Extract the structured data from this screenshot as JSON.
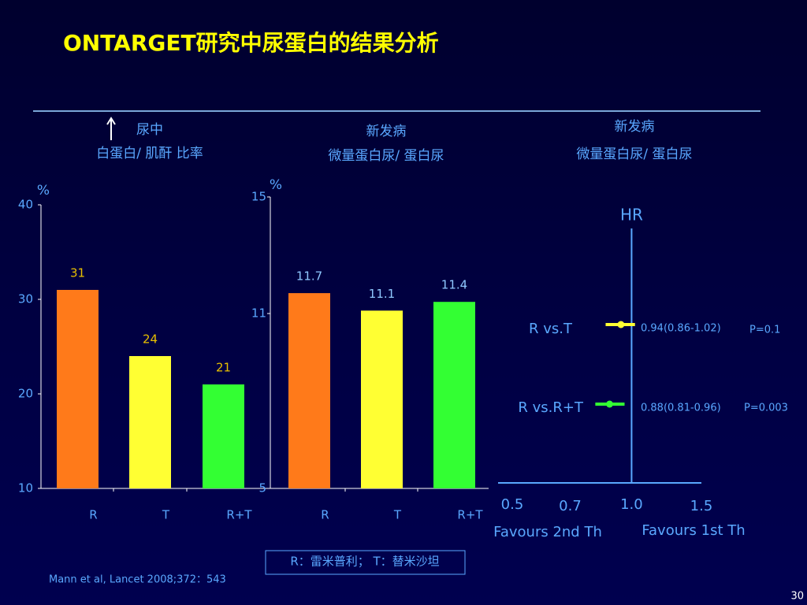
{
  "title": "ONTARGET研究中尿蛋白的结果分析",
  "footnote": "R：雷米普利； T：替米沙坦",
  "citation": "Mann et al, Lancet 2008;372：543",
  "page_number": "30",
  "chart_data": [
    {
      "type": "bar",
      "subtitle": [
        "尿中",
        "白蛋白/ 肌酐 比率"
      ],
      "y_label": "%",
      "categories": [
        "R",
        "T",
        "R+T"
      ],
      "values": [
        31,
        24,
        21
      ],
      "colors": [
        "#ff7a1a",
        "#ffff33",
        "#33ff33"
      ],
      "label_color": "#e8c000",
      "ylim": [
        10,
        40
      ],
      "yticks": [
        10,
        20,
        30,
        40
      ]
    },
    {
      "type": "bar",
      "subtitle": [
        "新发病",
        "微量蛋白尿/ 蛋白尿"
      ],
      "y_label": "%",
      "categories": [
        "R",
        "T",
        "R+T"
      ],
      "values": [
        11.7,
        11.1,
        11.4
      ],
      "colors": [
        "#ff7a1a",
        "#ffff33",
        "#33ff33"
      ],
      "label_color": "#8fc8ff",
      "ylim": [
        5,
        15
      ],
      "yticks": [
        5,
        11,
        15
      ]
    },
    {
      "type": "forest",
      "subtitle": [
        "新发病",
        "微量蛋白尿/ 蛋白尿"
      ],
      "x_label_top": "HR",
      "x_scale": "log",
      "rows": [
        {
          "label": "R  vs.T",
          "estimate": 0.94,
          "lo": 0.86,
          "hi": 1.02,
          "ci_label": "0.94(0.86-1.02)",
          "p_label": "P=0.1",
          "color": "#ffff33"
        },
        {
          "label": "R  vs.R+T",
          "estimate": 0.88,
          "lo": 0.81,
          "hi": 0.96,
          "ci_label": "0.88(0.81-0.96)",
          "p_label": "P=0.003",
          "color": "#33ff33"
        }
      ],
      "xlim": [
        0.5,
        1.5
      ],
      "xticks": [
        0.5,
        0.7,
        {
          "value": 1,
          "label": "1.0"
        },
        1.5
      ],
      "favours_left": "Favours 2nd Th",
      "favours_right": "Favours 1st Th"
    }
  ]
}
